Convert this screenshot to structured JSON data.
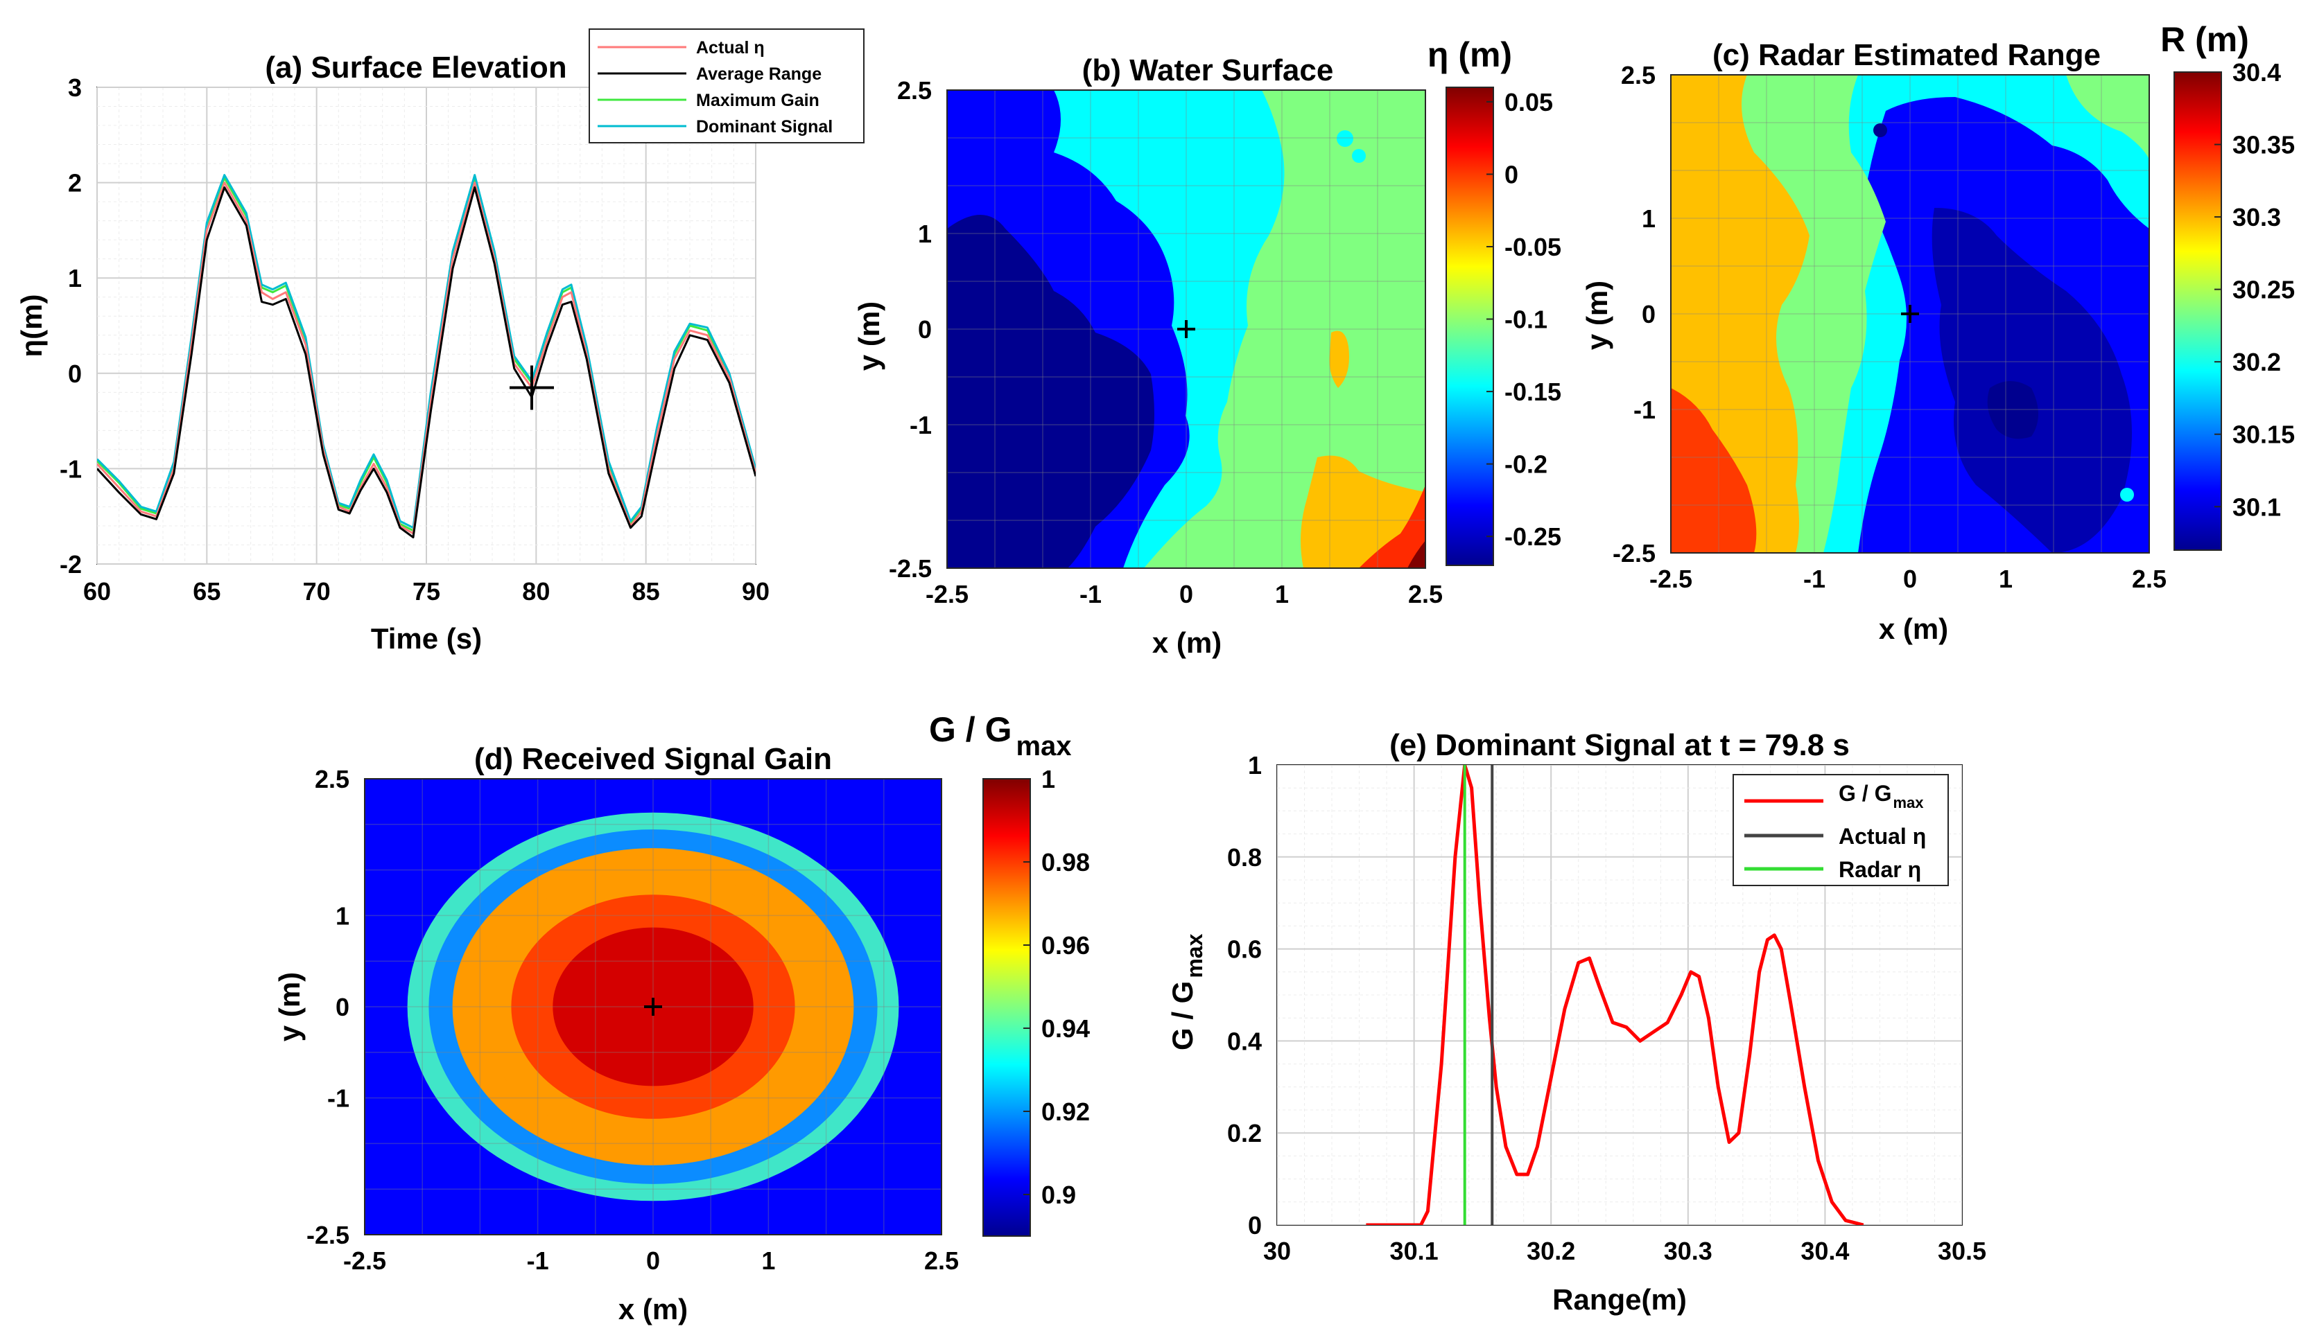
{
  "colors": {
    "actual": "#ff7a7a",
    "average": "#000000",
    "maxgain": "#3fe83f",
    "dominant": "#00bcd0",
    "gain_curve": "#ff0000",
    "actual_line": "#444444",
    "radar_line": "#33dd33"
  },
  "chart_data": [
    {
      "id": "a",
      "type": "line",
      "title": "(a) Surface Elevation",
      "xlabel": "Time (s)",
      "ylabel": "η(m)",
      "xlim": [
        60,
        90
      ],
      "ylim": [
        -2,
        3
      ],
      "xticks": [
        "60",
        "65",
        "70",
        "75",
        "80",
        "85",
        "90"
      ],
      "yticks": [
        "-2",
        "-1",
        "0",
        "1",
        "2",
        "3"
      ],
      "marker": {
        "x": 79.8,
        "y": -0.15,
        "symbol": "+"
      },
      "legend": [
        "Actual η",
        "Average Range",
        "Maximum Gain",
        "Dominant Signal"
      ],
      "x": [
        60,
        61,
        62,
        62.7,
        63.5,
        64.3,
        65,
        65.8,
        66.8,
        67.5,
        68,
        68.6,
        69.5,
        70.3,
        71,
        71.5,
        72,
        72.6,
        73.2,
        73.8,
        74.4,
        75.2,
        76.2,
        77.2,
        78.1,
        79,
        79.8,
        80.5,
        81.2,
        81.6,
        82.3,
        83.3,
        84.3,
        84.8,
        85.5,
        86.3,
        87,
        87.8,
        88.8,
        90
      ],
      "series": [
        {
          "name": "Actual η",
          "values": [
            -0.95,
            -1.2,
            -1.45,
            -1.5,
            -1.0,
            0.3,
            1.5,
            2.0,
            1.6,
            0.85,
            0.78,
            0.85,
            0.3,
            -0.8,
            -1.4,
            -1.45,
            -1.2,
            -0.95,
            -1.2,
            -1.6,
            -1.68,
            -0.3,
            1.2,
            2.0,
            1.2,
            0.1,
            -0.15,
            0.35,
            0.8,
            0.85,
            0.2,
            -1.0,
            -1.6,
            -1.45,
            -0.65,
            0.15,
            0.45,
            0.4,
            -0.05,
            -1.05
          ]
        },
        {
          "name": "Average Range",
          "values": [
            -1.0,
            -1.25,
            -1.48,
            -1.53,
            -1.05,
            0.2,
            1.4,
            1.95,
            1.55,
            0.75,
            0.72,
            0.78,
            0.2,
            -0.85,
            -1.43,
            -1.47,
            -1.23,
            -1.0,
            -1.25,
            -1.62,
            -1.72,
            -0.4,
            1.1,
            1.95,
            1.15,
            0.05,
            -0.25,
            0.28,
            0.72,
            0.75,
            0.15,
            -1.05,
            -1.62,
            -1.5,
            -0.75,
            0.05,
            0.4,
            0.35,
            -0.1,
            -1.08
          ]
        },
        {
          "name": "Maximum Gain",
          "values": [
            -0.92,
            -1.15,
            -1.42,
            -1.47,
            -0.95,
            0.35,
            1.55,
            2.05,
            1.65,
            0.9,
            0.85,
            0.92,
            0.35,
            -0.78,
            -1.38,
            -1.42,
            -1.15,
            -0.88,
            -1.15,
            -1.58,
            -1.65,
            -0.25,
            1.25,
            2.05,
            1.25,
            0.15,
            -0.1,
            0.4,
            0.85,
            0.9,
            0.25,
            -0.95,
            -1.58,
            -1.42,
            -0.6,
            0.2,
            0.5,
            0.45,
            -0.02,
            -1.02
          ]
        },
        {
          "name": "Dominant Signal",
          "values": [
            -0.9,
            -1.13,
            -1.4,
            -1.45,
            -0.93,
            0.38,
            1.58,
            2.08,
            1.68,
            0.93,
            0.88,
            0.95,
            0.38,
            -0.75,
            -1.36,
            -1.4,
            -1.12,
            -0.85,
            -1.12,
            -1.55,
            -1.62,
            -0.2,
            1.28,
            2.08,
            1.28,
            0.18,
            -0.08,
            0.43,
            0.88,
            0.93,
            0.28,
            -0.92,
            -1.55,
            -1.4,
            -0.57,
            0.23,
            0.52,
            0.48,
            0.0,
            -1.0
          ]
        }
      ]
    },
    {
      "id": "b",
      "type": "heatmap",
      "title": "(b) Water Surface",
      "xlabel": "x (m)",
      "ylabel": "y (m)",
      "xlim": [
        -2.5,
        2.5
      ],
      "ylim": [
        -2.5,
        2.5
      ],
      "xticks": [
        "-2.5",
        "-1",
        "0",
        "1",
        "2.5"
      ],
      "yticks": [
        "-2.5",
        "-1",
        "0",
        "1",
        "2.5"
      ],
      "colorbar": {
        "title": "η (m)",
        "range": [
          -0.27,
          0.06
        ],
        "ticks": [
          "0.05",
          "0",
          "-0.05",
          "-0.1",
          "-0.15",
          "-0.2",
          "-0.25"
        ]
      },
      "marker": {
        "x": 0,
        "y": 0,
        "symbol": "+"
      }
    },
    {
      "id": "c",
      "type": "heatmap",
      "title": "(c) Radar Estimated Range",
      "xlabel": "x (m)",
      "ylabel": "y (m)",
      "xlim": [
        -2.5,
        2.5
      ],
      "ylim": [
        -2.5,
        2.5
      ],
      "xticks": [
        "-2.5",
        "-1",
        "0",
        "1",
        "2.5"
      ],
      "yticks": [
        "-2.5",
        "-1",
        "0",
        "1",
        "2.5"
      ],
      "colorbar": {
        "title": "R (m)",
        "range": [
          30.07,
          30.4
        ],
        "ticks": [
          "30.4",
          "30.35",
          "30.3",
          "30.25",
          "30.2",
          "30.15",
          "30.1"
        ]
      },
      "marker": {
        "x": 0,
        "y": 0,
        "symbol": "+"
      }
    },
    {
      "id": "d",
      "type": "heatmap",
      "title": "(d) Received Signal Gain",
      "xlabel": "x (m)",
      "ylabel": "y (m)",
      "xlim": [
        -2.5,
        2.5
      ],
      "ylim": [
        -2.5,
        2.5
      ],
      "xticks": [
        "-2.5",
        "-1",
        "0",
        "1",
        "2.5"
      ],
      "yticks": [
        "-2.5",
        "-1",
        "0",
        "1",
        "2.5"
      ],
      "colorbar": {
        "title": "G / G",
        "title_sub": "max",
        "range": [
          0.89,
          1.0
        ],
        "ticks": [
          "1",
          "0.98",
          "0.96",
          "0.94",
          "0.92",
          "0.9"
        ]
      },
      "contour_levels": [
        0.99,
        0.98,
        0.97,
        0.96,
        0.95,
        0.94
      ],
      "marker": {
        "x": 0,
        "y": 0,
        "symbol": "+"
      }
    },
    {
      "id": "e",
      "type": "line",
      "title": "(e) Dominant Signal at t = 79.8 s",
      "xlabel": "Range(m)",
      "ylabel": "G / G",
      "ylabel_sub": "max",
      "xlim": [
        30,
        30.5
      ],
      "ylim": [
        0,
        1
      ],
      "xticks": [
        "30",
        "30.1",
        "30.2",
        "30.3",
        "30.4",
        "30.5"
      ],
      "yticks": [
        "0",
        "0.2",
        "0.4",
        "0.6",
        "0.8",
        "1"
      ],
      "legend": [
        "G / G",
        "Actual η",
        "Radar η"
      ],
      "legend_sub": "max",
      "x": [
        30.065,
        30.105,
        30.11,
        30.12,
        30.13,
        30.137,
        30.142,
        30.148,
        30.155,
        30.16,
        30.167,
        30.175,
        30.183,
        30.19,
        30.2,
        30.21,
        30.22,
        30.228,
        30.235,
        30.245,
        30.255,
        30.265,
        30.275,
        30.285,
        30.295,
        30.302,
        30.308,
        30.315,
        30.322,
        30.33,
        30.337,
        30.345,
        30.352,
        30.358,
        30.363,
        30.368,
        30.375,
        30.385,
        30.395,
        30.405,
        30.415,
        30.428
      ],
      "values": [
        0,
        0,
        0.03,
        0.35,
        0.8,
        1.0,
        0.95,
        0.7,
        0.45,
        0.3,
        0.17,
        0.11,
        0.11,
        0.17,
        0.32,
        0.47,
        0.57,
        0.58,
        0.52,
        0.44,
        0.43,
        0.4,
        0.42,
        0.44,
        0.5,
        0.55,
        0.54,
        0.45,
        0.3,
        0.18,
        0.2,
        0.37,
        0.55,
        0.62,
        0.63,
        0.6,
        0.48,
        0.3,
        0.14,
        0.05,
        0.01,
        0
      ],
      "actual_eta_range": 30.157,
      "radar_eta_range": 30.137
    }
  ]
}
